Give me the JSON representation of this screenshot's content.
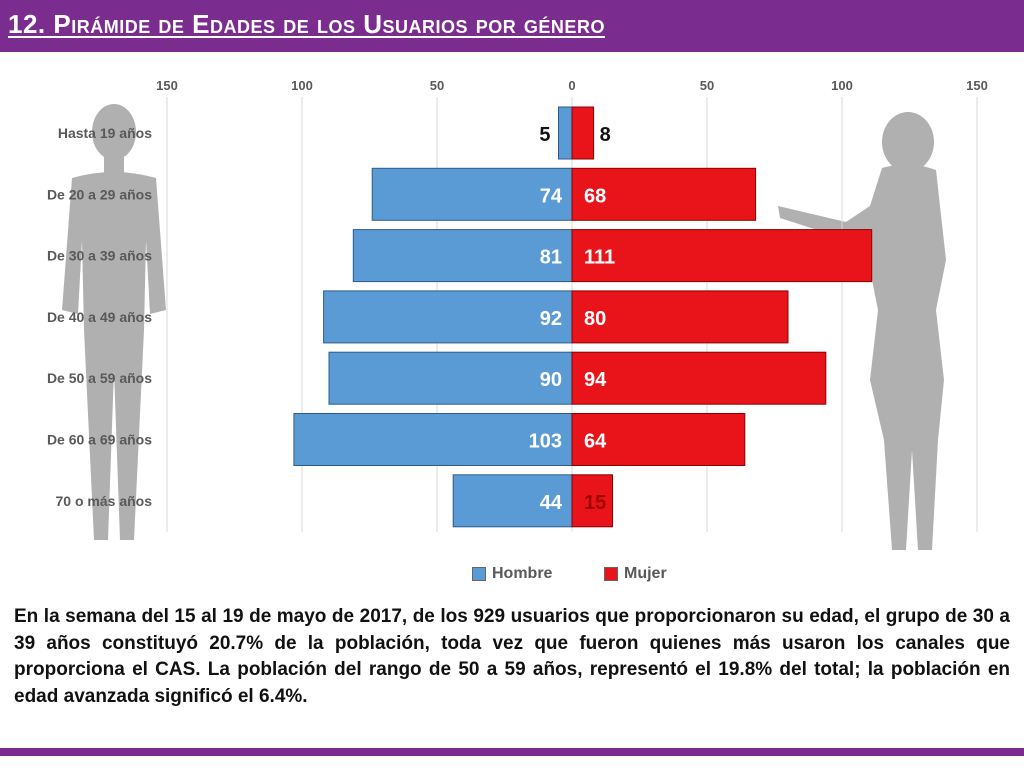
{
  "header": {
    "title": "12. Pirámide de Edades de los Usuarios por género"
  },
  "colors": {
    "header_bg": "#7b2c8f",
    "hombre": "#5b9bd5",
    "mujer": "#e8141a",
    "silhouette": "#b0b0b0"
  },
  "chart_data": {
    "type": "bar",
    "orientation": "horizontal",
    "subtype": "population-pyramid",
    "categories": [
      "Hasta 19 años",
      "De 20 a 29 años",
      "De 30 a 39 años",
      "De 40 a 49 años",
      "De 50 a 59 años",
      "De 60 a 69 años",
      "70 o más años"
    ],
    "series": [
      {
        "name": "Hombre",
        "values": [
          5,
          74,
          81,
          92,
          90,
          103,
          44
        ]
      },
      {
        "name": "Mujer",
        "values": [
          8,
          68,
          111,
          80,
          94,
          64,
          15
        ]
      }
    ],
    "xticks": [
      "150",
      "100",
      "50",
      "0",
      "50",
      "100",
      "150"
    ],
    "xlim": [
      -150,
      150
    ],
    "grid": true,
    "legend": "bottom"
  },
  "legend": {
    "hombre": "Hombre",
    "mujer": "Mujer"
  },
  "body": {
    "paragraph": "En la semana del 15 al 19 de mayo de 2017, de los 929 usuarios que proporcionaron su edad, el grupo de 30 a 39 años constituyó 20.7% de la población, toda vez que fueron quienes más usaron los canales que proporciona el CAS. La población del rango de 50 a 59 años, representó el 19.8% del total; la población en edad avanzada significó el 6.4%."
  }
}
